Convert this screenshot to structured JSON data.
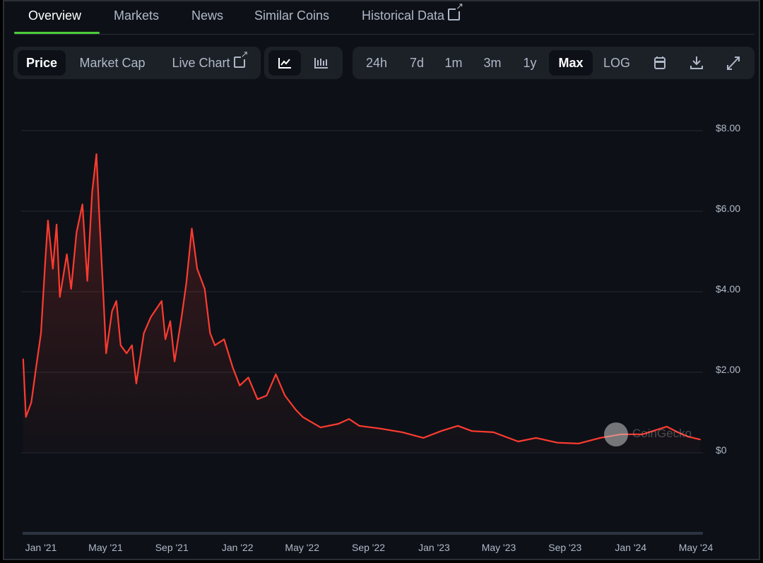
{
  "tabs": [
    {
      "label": "Overview",
      "active": true
    },
    {
      "label": "Markets"
    },
    {
      "label": "News"
    },
    {
      "label": "Similar Coins"
    },
    {
      "label": "Historical Data",
      "icon": "external-link-icon"
    }
  ],
  "toolbar": {
    "metric": [
      {
        "label": "Price",
        "selected": true
      },
      {
        "label": "Market Cap"
      },
      {
        "label": "Live Chart",
        "icon": "external-link-icon"
      }
    ],
    "chart_type": [
      {
        "icon": "line-chart-icon",
        "selected": true
      },
      {
        "icon": "candlestick-chart-icon"
      }
    ],
    "ranges": [
      {
        "label": "24h"
      },
      {
        "label": "7d"
      },
      {
        "label": "1m"
      },
      {
        "label": "3m"
      },
      {
        "label": "1y"
      },
      {
        "label": "Max",
        "selected": true
      },
      {
        "label": "LOG"
      }
    ],
    "actions": [
      {
        "icon": "calendar-icon"
      },
      {
        "icon": "download-icon"
      },
      {
        "icon": "expand-icon"
      }
    ]
  },
  "watermark": "CoinGecko",
  "colors": {
    "line": "#ff3b30",
    "background": "#0d1117",
    "accent": "#4bcc3b"
  },
  "chart_data": {
    "type": "line",
    "ylim": [
      0,
      8
    ],
    "y_ticks": [
      "$0",
      "$2.00",
      "$4.00",
      "$6.00",
      "$8.00"
    ],
    "y_tick_values": [
      0,
      2,
      4,
      6,
      8
    ],
    "x_ticks": [
      "Jan '21",
      "May '21",
      "Sep '21",
      "Jan '22",
      "May '22",
      "Sep '22",
      "Jan '23",
      "May '23",
      "Sep '23",
      "Jan '24",
      "May '24"
    ],
    "x_tick_dates": [
      "2021-01-01",
      "2021-05-01",
      "2021-09-01",
      "2022-01-01",
      "2022-05-01",
      "2022-09-01",
      "2023-01-01",
      "2023-05-01",
      "2023-09-01",
      "2024-01-01",
      "2024-05-01"
    ],
    "grid": true,
    "series": [
      {
        "points": [
          [
            "2020-11-29",
            2.26
          ],
          [
            "2020-12-04",
            0.82
          ],
          [
            "2020-12-14",
            1.18
          ],
          [
            "2020-12-23",
            2.05
          ],
          [
            "2021-01-01",
            2.9
          ],
          [
            "2021-01-09",
            4.7
          ],
          [
            "2021-01-14",
            5.7
          ],
          [
            "2021-01-23",
            4.5
          ],
          [
            "2021-01-30",
            5.6
          ],
          [
            "2021-02-05",
            3.8
          ],
          [
            "2021-02-18",
            4.86
          ],
          [
            "2021-02-26",
            4.0
          ],
          [
            "2021-03-08",
            5.4
          ],
          [
            "2021-03-19",
            6.1
          ],
          [
            "2021-03-28",
            4.2
          ],
          [
            "2021-04-06",
            6.4
          ],
          [
            "2021-04-14",
            7.35
          ],
          [
            "2021-04-19",
            5.9
          ],
          [
            "2021-04-27",
            3.8
          ],
          [
            "2021-05-02",
            2.4
          ],
          [
            "2021-05-13",
            3.45
          ],
          [
            "2021-05-21",
            3.7
          ],
          [
            "2021-05-29",
            2.6
          ],
          [
            "2021-06-09",
            2.4
          ],
          [
            "2021-06-19",
            2.6
          ],
          [
            "2021-06-27",
            1.65
          ],
          [
            "2021-07-11",
            2.9
          ],
          [
            "2021-07-24",
            3.3
          ],
          [
            "2021-08-13",
            3.7
          ],
          [
            "2021-08-20",
            2.75
          ],
          [
            "2021-08-29",
            3.2
          ],
          [
            "2021-09-06",
            2.2
          ],
          [
            "2021-09-19",
            3.3
          ],
          [
            "2021-09-28",
            4.15
          ],
          [
            "2021-10-08",
            5.5
          ],
          [
            "2021-10-18",
            4.5
          ],
          [
            "2021-11-01",
            4.0
          ],
          [
            "2021-11-11",
            2.9
          ],
          [
            "2021-11-20",
            2.6
          ],
          [
            "2021-12-07",
            2.75
          ],
          [
            "2021-12-23",
            2.05
          ],
          [
            "2022-01-05",
            1.6
          ],
          [
            "2022-01-21",
            1.8
          ],
          [
            "2022-02-07",
            1.26
          ],
          [
            "2022-02-24",
            1.35
          ],
          [
            "2022-03-13",
            1.88
          ],
          [
            "2022-03-30",
            1.35
          ],
          [
            "2022-04-19",
            1.0
          ],
          [
            "2022-05-02",
            0.82
          ],
          [
            "2022-06-04",
            0.56
          ],
          [
            "2022-07-07",
            0.65
          ],
          [
            "2022-07-27",
            0.77
          ],
          [
            "2022-08-15",
            0.6
          ],
          [
            "2022-09-24",
            0.53
          ],
          [
            "2022-11-03",
            0.44
          ],
          [
            "2022-12-12",
            0.3
          ],
          [
            "2023-01-14",
            0.47
          ],
          [
            "2023-02-14",
            0.6
          ],
          [
            "2023-03-12",
            0.47
          ],
          [
            "2023-04-21",
            0.44
          ],
          [
            "2023-06-06",
            0.21
          ],
          [
            "2023-07-09",
            0.3
          ],
          [
            "2023-08-18",
            0.18
          ],
          [
            "2023-09-26",
            0.16
          ],
          [
            "2023-11-05",
            0.3
          ],
          [
            "2023-12-14",
            0.39
          ],
          [
            "2024-01-23",
            0.39
          ],
          [
            "2024-03-08",
            0.58
          ],
          [
            "2024-03-28",
            0.44
          ],
          [
            "2024-04-17",
            0.33
          ],
          [
            "2024-05-09",
            0.26
          ]
        ]
      }
    ]
  }
}
